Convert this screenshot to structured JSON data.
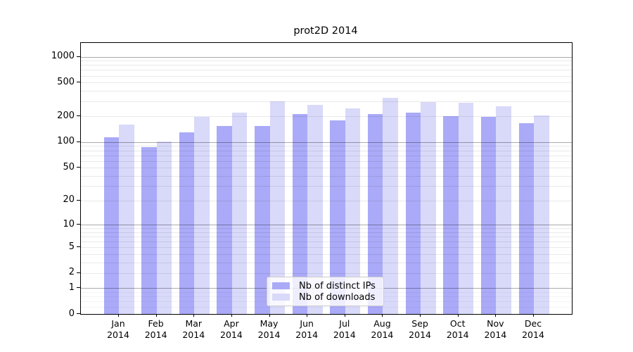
{
  "title": "prot2D 2014",
  "chart_data": {
    "type": "bar",
    "title": "prot2D 2014",
    "categories": [
      "Jan",
      "Feb",
      "Mar",
      "Apr",
      "May",
      "Jun",
      "Jul",
      "Aug",
      "Sep",
      "Oct",
      "Nov",
      "Dec"
    ],
    "year_label": "2014",
    "series": [
      {
        "name": "Nb of distinct IPs",
        "color": "#aaaaf8",
        "values": [
          115,
          87,
          131,
          154,
          154,
          212,
          181,
          213,
          223,
          202,
          199,
          166
        ]
      },
      {
        "name": "Nb of downloads",
        "color": "#d9d9fa",
        "values": [
          162,
          101,
          199,
          221,
          303,
          273,
          250,
          330,
          295,
          290,
          264,
          205
        ]
      }
    ],
    "yscale": "log10(1+x)",
    "ytick_values": [
      1000,
      500,
      200,
      100,
      50,
      20,
      10,
      5,
      2,
      1,
      0
    ],
    "ytick_labels": [
      "1000",
      "500",
      "200",
      "100",
      "50",
      "20",
      "10",
      "5",
      "2",
      "1",
      "0"
    ],
    "ylim": [
      0,
      1450
    ],
    "grid": true,
    "major_grid_values": [
      1,
      10,
      100,
      1000
    ],
    "minor_grid_values": [
      2,
      3,
      4,
      5,
      6,
      7,
      8,
      9,
      20,
      30,
      40,
      50,
      60,
      70,
      80,
      90,
      200,
      300,
      400,
      500,
      600,
      700,
      800,
      900
    ],
    "sub_grid_values": [
      0.2,
      0.4,
      0.6,
      0.8
    ],
    "legend_position": "lower center inside"
  },
  "legend": {
    "items": [
      {
        "label": "Nb of distinct IPs",
        "color": "#aaaaf8"
      },
      {
        "label": "Nb of downloads",
        "color": "#d9d9fa"
      }
    ]
  },
  "colors": {
    "bar_ips": "#aaaaf8",
    "bar_downloads": "#d9d9fa",
    "axis": "#000000",
    "legend_border": "#cccccc"
  }
}
